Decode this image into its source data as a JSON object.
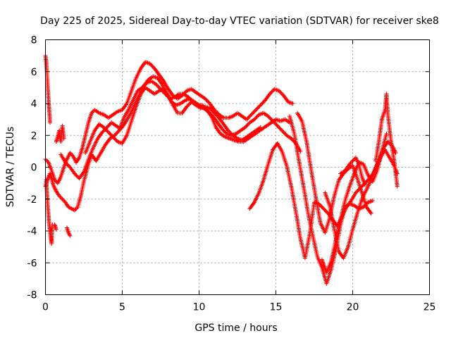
{
  "chart_data": {
    "type": "scatter",
    "title": "Day 225 of 2025, Sidereal Day-to-day VTEC variation (SDTVAR) for receiver ske8",
    "xlabel": "GPS time / hours",
    "ylabel": "SDTVAR / TECUs",
    "xlim": [
      0,
      25
    ],
    "ylim": [
      -8,
      8
    ],
    "xticks": [
      "0",
      "5",
      "10",
      "15",
      "20",
      "25"
    ],
    "yticks": [
      "-8",
      "-6",
      "-4",
      "-2",
      "0",
      "2",
      "4",
      "6",
      "8"
    ],
    "grid": true,
    "marker": "plus",
    "color": "#ff0000",
    "series": [
      {
        "x": [
          0.0,
          0.1,
          0.2,
          0.3,
          0.4,
          0.5,
          0.7,
          0.9,
          1.1,
          1.3,
          1.5,
          1.7,
          1.9,
          2.1,
          2.3,
          2.5,
          2.8,
          3.0,
          3.3,
          3.6,
          3.9,
          4.2,
          4.5,
          4.8,
          5.1,
          5.4,
          5.7,
          6.0,
          6.3,
          6.6,
          6.9,
          7.2,
          7.5,
          7.8,
          8.1,
          8.4,
          8.7,
          9.0,
          9.3,
          9.6,
          9.9,
          10.2,
          10.5,
          10.8,
          11.1,
          11.4,
          11.7,
          12.0,
          12.3,
          12.6,
          12.9,
          13.2,
          13.5,
          13.8,
          14.1,
          14.4,
          14.7,
          15.0,
          15.3,
          15.6,
          15.9
        ],
        "y": [
          -1.2,
          -0.9,
          -0.6,
          -0.4,
          -0.7,
          -1.1,
          -1.5,
          -1.8,
          -2.0,
          -2.2,
          -2.5,
          -2.6,
          -2.7,
          -2.5,
          -1.8,
          -0.9,
          0.2,
          0.8,
          0.4,
          0.9,
          1.4,
          1.8,
          2.0,
          2.3,
          3.1,
          3.6,
          4.2,
          4.8,
          5.0,
          5.3,
          5.4,
          5.2,
          4.9,
          4.6,
          4.3,
          4.4,
          4.6,
          4.6,
          4.4,
          4.1,
          3.9,
          3.9,
          3.6,
          3.2,
          2.5,
          2.1,
          1.9,
          1.8,
          1.7,
          1.6,
          1.6,
          1.8,
          2.0,
          2.2,
          2.4,
          2.6,
          2.8,
          3.0,
          2.9,
          3.0,
          2.8
        ]
      },
      {
        "x": [
          0.0,
          0.2,
          0.4,
          0.6,
          0.8,
          1.0,
          1.2,
          1.4,
          1.6,
          1.8,
          2.0,
          2.2,
          2.4,
          2.6,
          2.8,
          3.0,
          3.2,
          3.5,
          3.8,
          4.1,
          4.4,
          4.7,
          5.0,
          5.3,
          5.6,
          5.9,
          6.2,
          6.5,
          6.8,
          7.1,
          7.4,
          7.7,
          8.0,
          8.3,
          8.6,
          8.9,
          9.2,
          9.5,
          9.8,
          10.1,
          10.4,
          10.7,
          11.0,
          11.3,
          11.6,
          11.9,
          12.2,
          12.5,
          12.8,
          13.1,
          13.4,
          13.7,
          14.0,
          14.3,
          14.6,
          14.9,
          15.2,
          15.5,
          15.8,
          16.1
        ],
        "y": [
          0.5,
          0.3,
          -0.2,
          -0.8,
          -1.0,
          -0.6,
          0.0,
          0.5,
          0.9,
          0.7,
          0.3,
          0.6,
          1.2,
          2.0,
          2.8,
          3.4,
          3.6,
          3.4,
          3.3,
          3.1,
          3.3,
          3.5,
          3.6,
          4.0,
          4.8,
          5.6,
          6.2,
          6.6,
          6.5,
          6.2,
          5.8,
          5.4,
          4.9,
          4.5,
          4.3,
          4.5,
          4.8,
          4.9,
          4.7,
          4.5,
          4.3,
          4.0,
          3.6,
          3.3,
          3.1,
          3.1,
          3.2,
          3.4,
          3.2,
          3.0,
          3.3,
          3.6,
          3.9,
          4.2,
          4.6,
          4.9,
          4.8,
          4.5,
          4.1,
          4.0
        ]
      },
      {
        "x": [
          1.0,
          1.3,
          1.6,
          1.9,
          2.2,
          2.5,
          2.8,
          3.1,
          3.4,
          3.7,
          4.0,
          4.3,
          4.6,
          4.9,
          5.2,
          5.5,
          5.8,
          6.1,
          6.4,
          6.7,
          7.0,
          7.3,
          7.6,
          7.9,
          8.2,
          8.5,
          8.8,
          9.1,
          9.4,
          9.7,
          10.0,
          10.3,
          10.6,
          10.9,
          11.2,
          11.5,
          11.8,
          12.1,
          12.4,
          12.7,
          13.0,
          13.3,
          13.6,
          13.9,
          14.2,
          14.5,
          14.8,
          15.1,
          15.4,
          15.7,
          16.0,
          16.3,
          16.6
        ],
        "y": [
          0.8,
          0.3,
          0.0,
          -0.4,
          -0.7,
          -0.3,
          0.5,
          1.2,
          1.8,
          2.2,
          2.5,
          2.8,
          2.6,
          2.4,
          2.8,
          3.3,
          3.9,
          4.5,
          5.1,
          5.5,
          5.7,
          5.6,
          5.2,
          4.6,
          4.1,
          3.9,
          4.0,
          4.2,
          4.3,
          4.1,
          3.9,
          3.7,
          3.5,
          3.2,
          2.8,
          2.4,
          2.1,
          2.0,
          2.1,
          2.3,
          2.5,
          2.8,
          3.0,
          3.3,
          3.4,
          3.2,
          2.9,
          2.6,
          2.3,
          2.0,
          1.8,
          1.5,
          1.0
        ]
      },
      {
        "x": [
          2.6,
          2.9,
          3.2,
          3.5,
          3.8,
          4.1,
          4.4,
          4.7,
          5.0,
          5.3,
          5.6,
          5.9,
          6.2,
          6.5,
          6.8,
          7.1,
          7.4,
          7.7,
          8.0,
          8.3,
          8.6,
          8.9,
          9.2,
          9.5,
          9.8,
          10.1,
          10.4,
          10.7,
          11.0,
          11.3,
          11.6,
          11.9,
          12.2,
          12.5,
          12.8,
          13.1,
          13.4,
          13.7,
          14.0
        ],
        "y": [
          0.9,
          1.6,
          2.3,
          2.7,
          2.5,
          2.2,
          1.9,
          1.6,
          1.5,
          2.0,
          2.9,
          3.8,
          4.6,
          5.0,
          4.8,
          4.6,
          4.8,
          4.9,
          4.5,
          3.9,
          3.4,
          3.4,
          3.8,
          4.1,
          3.9,
          3.7,
          3.8,
          3.7,
          3.4,
          3.1,
          2.7,
          2.3,
          2.0,
          1.8,
          1.7,
          1.9,
          2.1,
          2.3,
          2.5
        ]
      },
      {
        "x": [
          13.3,
          13.6,
          13.9,
          14.2,
          14.5,
          14.8,
          15.1,
          15.4,
          15.7,
          16.0,
          16.3,
          16.6,
          16.9,
          17.2,
          17.5,
          17.8,
          18.1,
          18.4,
          18.7,
          19.0,
          19.3,
          19.6,
          19.9,
          20.2,
          20.5,
          20.8,
          21.1,
          21.4,
          21.7,
          22.0,
          22.3,
          22.6,
          22.8
        ],
        "y": [
          -2.6,
          -2.2,
          -1.6,
          -0.8,
          0.2,
          1.1,
          1.5,
          1.0,
          0.1,
          -1.2,
          -2.8,
          -4.5,
          -5.7,
          -4.2,
          -2.2,
          -2.3,
          -2.6,
          -2.9,
          -3.3,
          -3.7,
          -3.1,
          -2.5,
          -2.1,
          -1.6,
          -1.3,
          -1.0,
          -0.7,
          -0.3,
          0.4,
          1.2,
          1.6,
          1.3,
          0.9
        ]
      },
      {
        "x": [
          15.9,
          16.2,
          16.5,
          16.8,
          17.1,
          17.4,
          17.7,
          18.0,
          18.3,
          18.6,
          18.9,
          19.2,
          19.5,
          19.8,
          20.1,
          20.4,
          20.7,
          21.0,
          21.3
        ],
        "y": [
          3.2,
          2.1,
          0.4,
          -1.2,
          -2.9,
          -4.3,
          -5.6,
          -6.3,
          -7.3,
          -6.4,
          -5.2,
          -3.6,
          -2.5,
          -2.3,
          -2.4,
          -2.6,
          -2.5,
          -2.2,
          -2.1
        ]
      },
      {
        "x": [
          16.4,
          16.7,
          17.0,
          17.3,
          17.6,
          17.9,
          18.2,
          18.5,
          18.8,
          19.1,
          19.4,
          19.7,
          20.0,
          20.3,
          20.6,
          20.9,
          21.2
        ],
        "y": [
          3.4,
          2.9,
          1.6,
          -0.2,
          -1.9,
          -3.5,
          -4.1,
          -3.2,
          -1.8,
          -0.8,
          -0.4,
          -0.1,
          0.1,
          -0.7,
          -1.6,
          -2.5,
          -2.9
        ]
      },
      {
        "x": [
          18.0,
          18.3,
          18.6,
          18.9,
          19.2,
          19.5,
          19.8,
          20.1,
          20.4,
          20.7,
          21.0,
          21.3,
          21.6,
          21.9,
          22.2
        ],
        "y": [
          -5.8,
          -6.6,
          -5.9,
          -4.6,
          -3.3,
          -2.1,
          -1.2,
          -0.4,
          0.3,
          0.2,
          -0.5,
          -0.9,
          -0.2,
          1.0,
          2.1
        ]
      },
      {
        "x": [
          18.2,
          18.5,
          18.8,
          19.1,
          19.4,
          19.7,
          20.0,
          20.3,
          20.6,
          20.9,
          21.2,
          21.5,
          21.8,
          22.1,
          22.4,
          22.7,
          22.9
        ],
        "y": [
          -1.6,
          -2.4,
          -3.9,
          -5.3,
          -5.7,
          -5.0,
          -3.9,
          -2.9,
          -2.0,
          -1.4,
          -0.8,
          0.0,
          0.6,
          1.1,
          0.6,
          0.1,
          -0.4
        ]
      },
      {
        "x": [
          21.5,
          21.7,
          21.9,
          22.1,
          22.2,
          22.3,
          22.5,
          22.7,
          22.9
        ],
        "y": [
          0.4,
          1.6,
          3.0,
          3.6,
          4.6,
          3.2,
          1.6,
          0.4,
          -1.2
        ]
      },
      {
        "x": [
          19.2,
          19.4,
          19.6,
          19.8,
          20.0,
          20.2,
          20.4,
          20.6,
          20.8
        ],
        "y": [
          -0.4,
          -0.3,
          -0.1,
          0.2,
          0.4,
          0.6,
          0.2,
          -0.6,
          -1.1
        ]
      },
      {
        "x": [
          0.0,
          0.05,
          0.1,
          0.15,
          0.2,
          0.25,
          0.3
        ],
        "y": [
          7.0,
          6.6,
          5.9,
          5.1,
          4.2,
          3.5,
          2.8
        ]
      },
      {
        "x": [
          0.05,
          0.1,
          0.15,
          0.2,
          0.25,
          0.3,
          0.35,
          0.4,
          0.45
        ],
        "y": [
          -0.8,
          -1.6,
          -2.4,
          -3.1,
          -3.6,
          -4.0,
          -4.4,
          -4.8,
          -3.6
        ]
      },
      {
        "x": [
          0.7,
          0.8,
          0.9,
          1.0,
          1.1,
          1.2
        ],
        "y": [
          1.6,
          1.9,
          2.3,
          1.6,
          2.6,
          1.8
        ]
      },
      {
        "x": [
          1.4,
          1.5,
          1.6
        ],
        "y": [
          -3.8,
          -4.1,
          -4.3
        ]
      },
      {
        "x": [
          0.6,
          0.7
        ],
        "y": [
          -3.6,
          -3.9
        ]
      }
    ]
  }
}
